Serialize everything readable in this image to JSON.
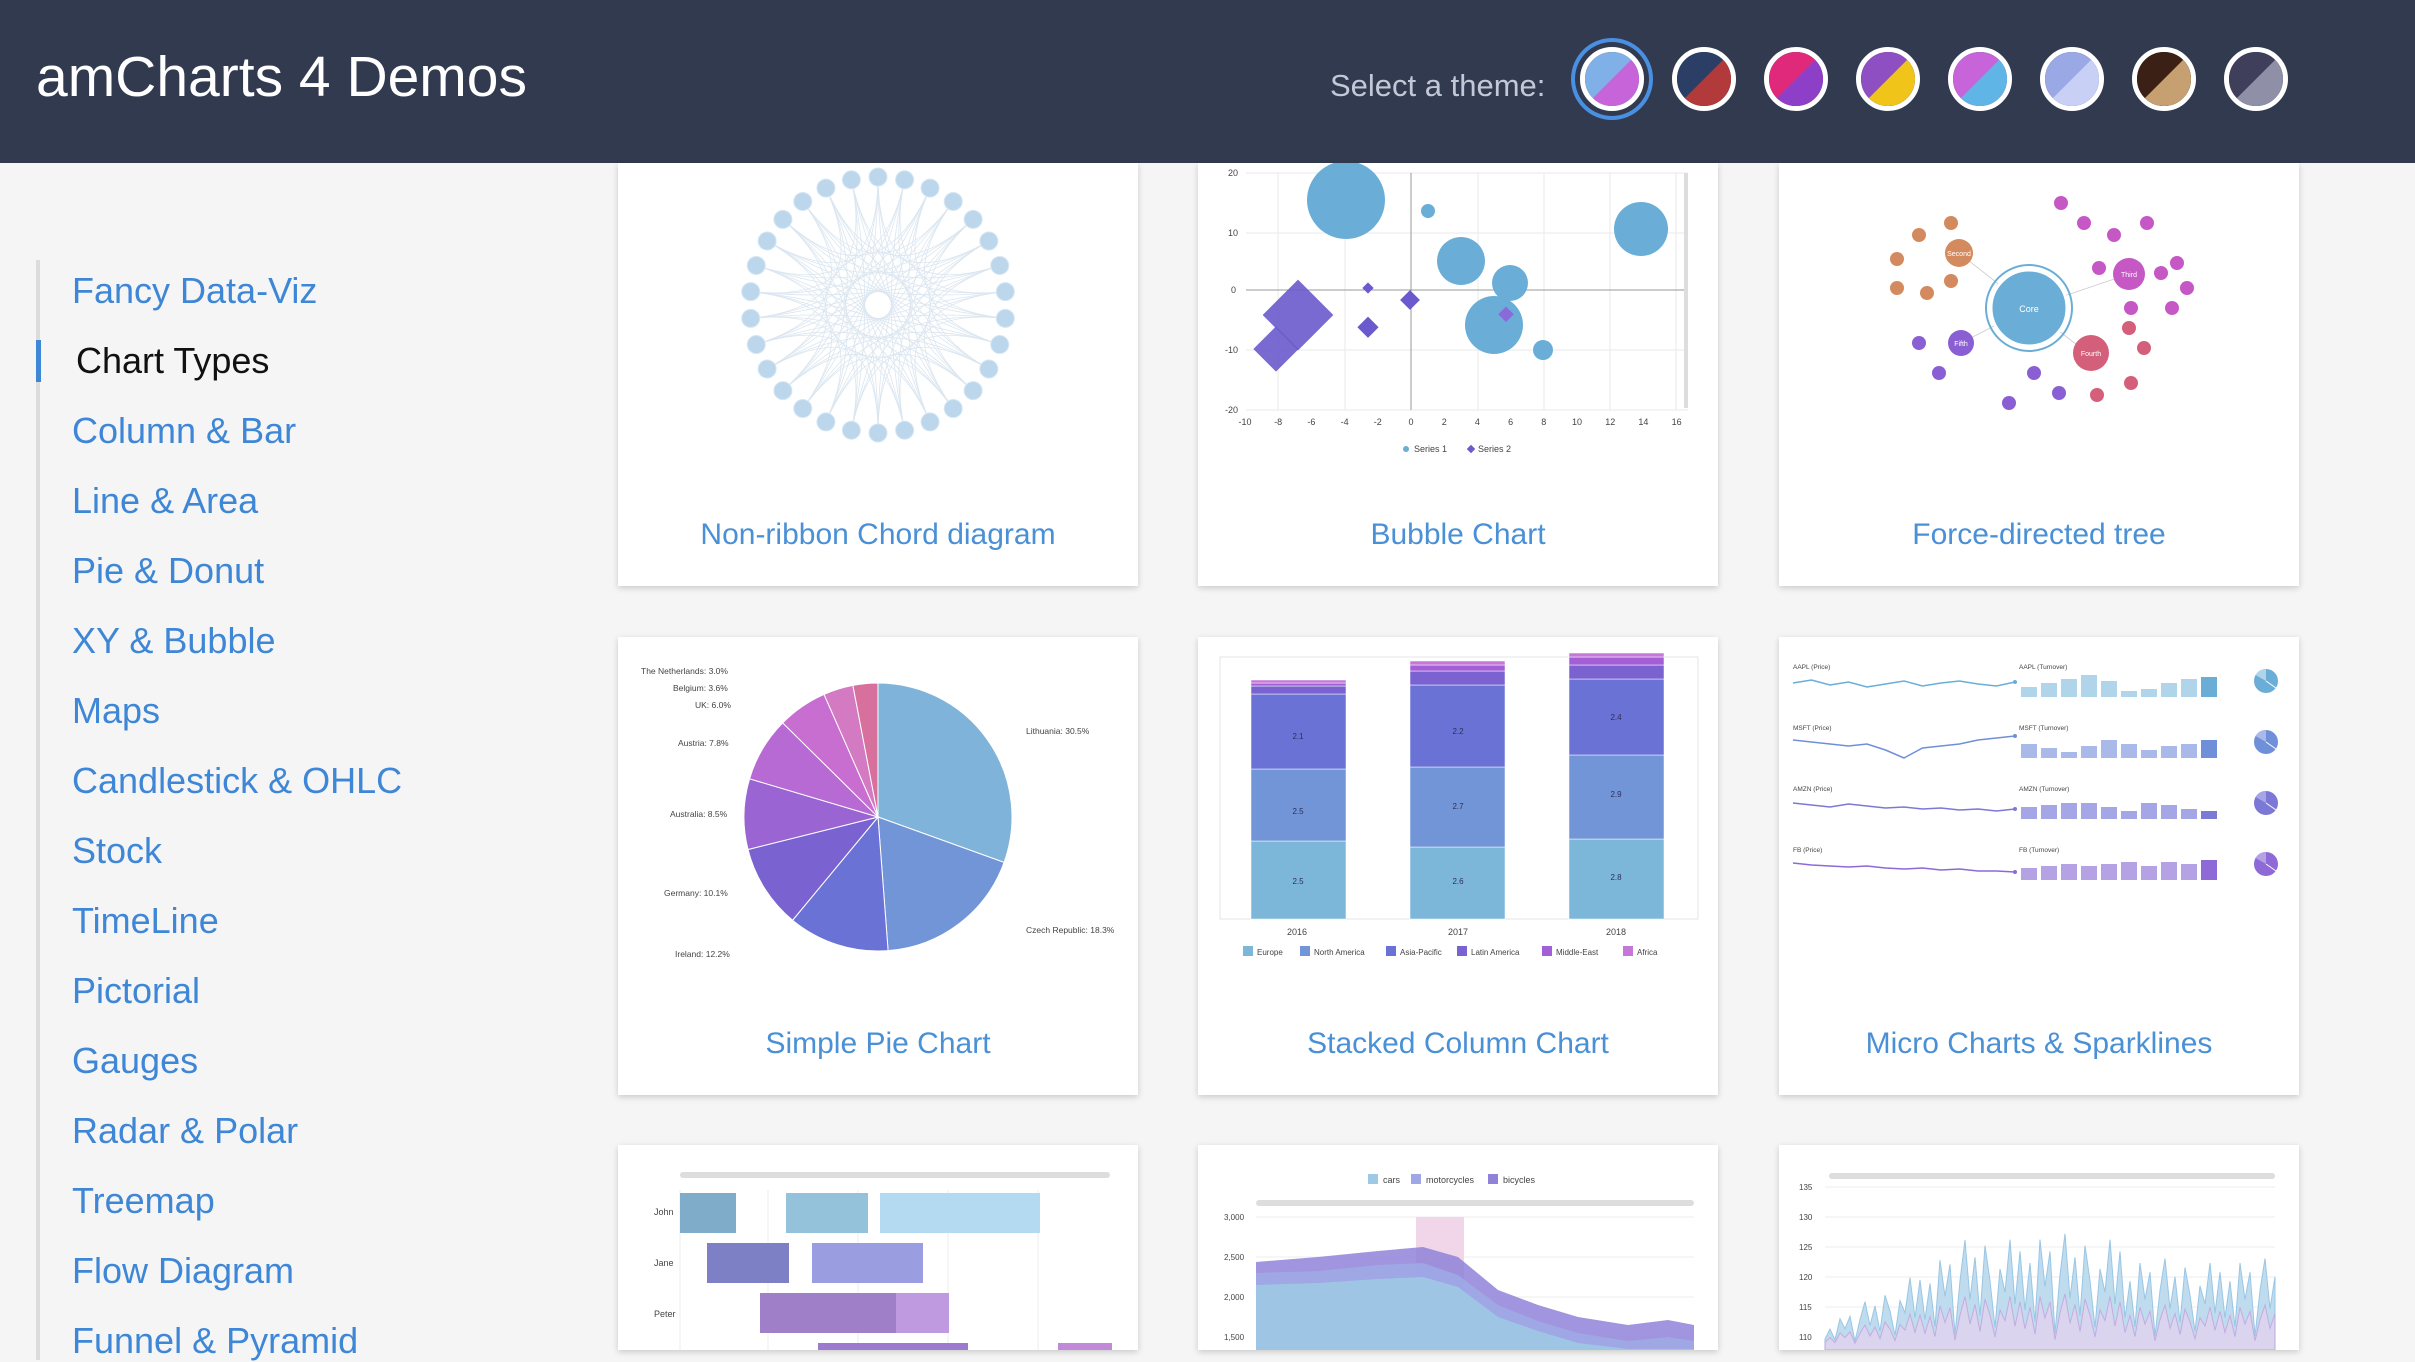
{
  "header": {
    "title": "amCharts 4 Demos",
    "theme_label": "Select a theme:"
  },
  "themes": [
    {
      "name": "animated",
      "a": "#7fb1e8",
      "b": "#c764d9",
      "selected": true
    },
    {
      "name": "dark",
      "a": "#2b3f66",
      "b": "#b23a3a"
    },
    {
      "name": "material",
      "a": "#e0297a",
      "b": "#8e3fc8"
    },
    {
      "name": "kelly",
      "a": "#8e4fc2",
      "b": "#f0c419"
    },
    {
      "name": "dataviz",
      "a": "#c764d9",
      "b": "#5fb5e6"
    },
    {
      "name": "frozen",
      "a": "#9aa8e6",
      "b": "#c9d0f5"
    },
    {
      "name": "moonrise",
      "a": "#3b2015",
      "b": "#c7a071"
    },
    {
      "name": "spirited",
      "a": "#3f3f5c",
      "b": "#8f90a8"
    }
  ],
  "sidebar": {
    "items": [
      {
        "label": "Fancy Data-Viz"
      },
      {
        "label": "Chart Types",
        "active": true
      },
      {
        "label": "Column & Bar"
      },
      {
        "label": "Line & Area"
      },
      {
        "label": "Pie & Donut"
      },
      {
        "label": "XY & Bubble"
      },
      {
        "label": "Maps"
      },
      {
        "label": "Candlestick & OHLC"
      },
      {
        "label": "Stock"
      },
      {
        "label": "TimeLine"
      },
      {
        "label": "Pictorial"
      },
      {
        "label": "Gauges"
      },
      {
        "label": "Radar & Polar"
      },
      {
        "label": "Treemap"
      },
      {
        "label": "Flow Diagram"
      },
      {
        "label": "Funnel & Pyramid"
      }
    ]
  },
  "cards": [
    {
      "title": "Non-ribbon Chord diagram"
    },
    {
      "title": "Bubble Chart"
    },
    {
      "title": "Force-directed tree"
    },
    {
      "title": "Simple Pie Chart"
    },
    {
      "title": "Stacked Column Chart"
    },
    {
      "title": "Micro Charts & Sparklines"
    }
  ],
  "thumbs": {
    "bubble": {
      "y_ticks": [
        "20",
        "10",
        "0",
        "-10",
        "-20"
      ],
      "x_ticks": [
        "-10",
        "-8",
        "-6",
        "-4",
        "-2",
        "0",
        "2",
        "4",
        "6",
        "8",
        "10",
        "12",
        "14",
        "16"
      ],
      "legend": [
        "Series 1",
        "Series 2"
      ]
    },
    "tree": {
      "center": "Core",
      "nodes": [
        "Fourth",
        "Third",
        "Second",
        "Fifth"
      ]
    },
    "pie": {
      "labels": [
        "The Netherlands: 3.0%",
        "Belgium: 3.6%",
        "UK: 6.0%",
        "Austria: 7.8%",
        "Australia: 8.5%",
        "Germany: 10.1%",
        "Ireland: 12.2%",
        "Lithuania: 30.5%",
        "Czech Republic: 18.3%"
      ]
    },
    "stacked": {
      "years": [
        "2016",
        "2017",
        "2018"
      ],
      "values": [
        "2.1",
        "2.5",
        "2.5",
        "2.2",
        "2.7",
        "2.6",
        "2.4",
        "2.9",
        "2.8"
      ],
      "legend": [
        "Europe",
        "North America",
        "Asia-Pacific",
        "Latin America",
        "Middle-East",
        "Africa"
      ]
    },
    "micro": {
      "left_labels": [
        "AAPL (Price)",
        "MSFT (Price)",
        "AMZN (Price)",
        "FB (Price)"
      ],
      "right_labels": [
        "AAPL (Turnover)",
        "MSFT (Turnover)",
        "AMZN (Turnover)",
        "FB (Turnover)"
      ]
    },
    "gantt": {
      "rows": [
        "John",
        "Jane",
        "Peter"
      ]
    },
    "area": {
      "legend": [
        "cars",
        "motorcycles",
        "bicycles"
      ],
      "y_ticks": [
        "3,000",
        "2,500",
        "2,000",
        "1,500"
      ]
    },
    "line": {
      "y_ticks": [
        "135",
        "130",
        "125",
        "120",
        "115",
        "110"
      ]
    }
  }
}
